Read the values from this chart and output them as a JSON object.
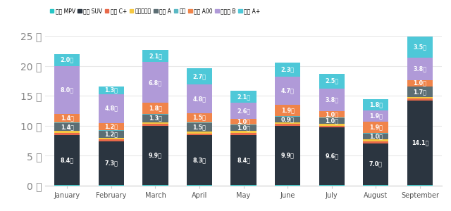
{
  "months": [
    "January",
    "February",
    "March",
    "April",
    "May",
    "June",
    "July",
    "August",
    "September"
  ],
  "segment_data": {
    "国产 MPV": [
      0.1,
      0.1,
      0.1,
      0.1,
      0.1,
      0.1,
      0.1,
      0.1,
      0.1
    ],
    "国产 SUV": [
      8.4,
      7.3,
      9.9,
      8.3,
      8.4,
      9.9,
      9.6,
      7.0,
      14.1
    ],
    "豪华 C+": [
      0.3,
      0.3,
      0.3,
      0.3,
      0.3,
      0.3,
      0.3,
      0.3,
      0.3
    ],
    "进口电动车": [
      0.3,
      0.3,
      0.3,
      0.3,
      0.3,
      0.3,
      0.3,
      0.3,
      0.3
    ],
    "普及 A": [
      1.4,
      1.2,
      1.3,
      1.5,
      1.0,
      0.9,
      1.0,
      1.0,
      1.7
    ],
    "其他": [
      0.1,
      0.1,
      0.1,
      0.1,
      0.1,
      0.1,
      0.1,
      0.1,
      0.1
    ],
    "微型 A00": [
      1.4,
      1.2,
      1.8,
      1.5,
      1.0,
      1.9,
      1.0,
      1.9,
      1.0
    ],
    "中高级 B": [
      8.0,
      4.8,
      6.8,
      4.8,
      2.6,
      4.7,
      3.8,
      1.9,
      3.8
    ],
    "中级 A+": [
      2.0,
      1.3,
      2.1,
      2.7,
      2.1,
      2.3,
      2.5,
      1.8,
      3.5
    ]
  },
  "colors": {
    "国产 MPV": "#26c6c6",
    "国产 SUV": "#2b3540",
    "豪华 C+": "#e8694a",
    "进口电动车": "#f5c842",
    "普及 A": "#5c6e74",
    "其他": "#5ab8c4",
    "微型 A00": "#f0844a",
    "中高级 B": "#b09ad8",
    "中级 A+": "#4ec8d8"
  },
  "plot_order": [
    "国产 MPV",
    "国产 SUV",
    "豪华 C+",
    "进口电动车",
    "普及 A",
    "其他",
    "微型 A00",
    "中高级 B",
    "中级 A+"
  ],
  "legend_order": [
    "国产 MPV",
    "国产 SUV",
    "豪华 C+",
    "进口电动车",
    "普及 A",
    "其他",
    "微型 A00",
    "中高级 B",
    "中级 A+"
  ],
  "labels": {
    "国产 SUV": [
      "8.4千",
      "7.3千",
      "9.9千",
      "8.3千",
      "8.4千",
      "9.9千",
      "9.6千",
      "7.0千",
      "14.1千"
    ],
    "普及 A": [
      "1.4千",
      "1.2千",
      "1.3千",
      "1.5千",
      "1.0千",
      "0.9千",
      "1.0千",
      "1.0千",
      "1.7千"
    ],
    "微型 A00": [
      "1.4千",
      "1.2千",
      "1.8千",
      "1.5千",
      "1.0千",
      "1.9千",
      "1.0千",
      "1.9千",
      "1.0千"
    ],
    "中高级 B": [
      "8.0千",
      "4.8千",
      "6.8千",
      "4.8千",
      "2.6千",
      "4.7千",
      "3.8千",
      "1.9千",
      "3.8千"
    ],
    "中级 A+": [
      "2.0千",
      "1.3千",
      "2.1千",
      "2.7千",
      "2.1千",
      "2.3千",
      "2.5千",
      "1.8千",
      "3.5千"
    ]
  },
  "ylim": [
    0,
    25
  ],
  "yticks": [
    0,
    5,
    10,
    15,
    20,
    25
  ],
  "yticklabels": [
    "0 千",
    "5 千",
    "10 千",
    "15 千",
    "20 千",
    "25 千"
  ],
  "bg_color": "#ffffff",
  "grid_color": "#e8e8e8",
  "bar_width": 0.58
}
